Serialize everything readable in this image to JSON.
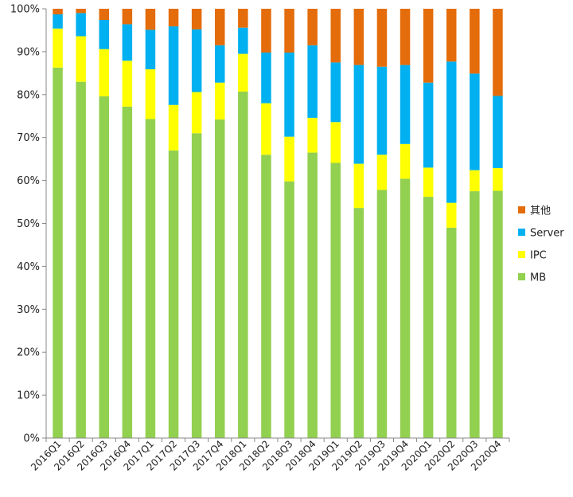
{
  "chart_data": {
    "type": "bar",
    "stacked": true,
    "percent_stacked": true,
    "categories": [
      "2016Q1",
      "2016Q2",
      "2016Q3",
      "2016Q4",
      "2017Q1",
      "2017Q2",
      "2017Q3",
      "2017Q4",
      "2018Q1",
      "2018Q2",
      "2018Q3",
      "2018Q4",
      "2019Q1",
      "2019Q2",
      "2019Q3",
      "2019Q4",
      "2020Q1",
      "2020Q2",
      "2020Q3",
      "2020Q4"
    ],
    "series": [
      {
        "name": "MB",
        "color": "#92D050",
        "values": [
          86.3,
          83.0,
          79.6,
          77.2,
          74.3,
          67.0,
          71.0,
          74.2,
          80.7,
          66.0,
          59.8,
          66.5,
          64.1,
          53.6,
          57.8,
          60.4,
          56.2,
          49.0,
          57.5,
          57.6
        ]
      },
      {
        "name": "IPC",
        "color": "#FFFF00",
        "values": [
          9.1,
          10.6,
          11.0,
          10.7,
          11.6,
          10.6,
          9.6,
          8.6,
          8.8,
          12.0,
          10.4,
          8.1,
          9.5,
          10.3,
          8.2,
          8.1,
          6.8,
          5.8,
          4.9,
          5.3
        ]
      },
      {
        "name": "Server",
        "color": "#00B0F0",
        "values": [
          3.3,
          5.4,
          6.8,
          8.5,
          9.2,
          18.3,
          14.6,
          8.7,
          6.1,
          11.8,
          19.6,
          16.9,
          13.9,
          23.0,
          20.5,
          18.4,
          19.8,
          32.9,
          22.5,
          16.8
        ]
      },
      {
        "name": "其他",
        "color": "#E46C0A",
        "values": [
          1.3,
          1.0,
          2.6,
          3.6,
          4.9,
          4.1,
          4.8,
          8.5,
          4.4,
          10.2,
          10.2,
          8.5,
          12.5,
          13.1,
          13.5,
          13.1,
          17.2,
          12.3,
          15.1,
          20.3
        ]
      }
    ],
    "yticks": [
      "0%",
      "10%",
      "20%",
      "30%",
      "40%",
      "50%",
      "60%",
      "70%",
      "80%",
      "90%",
      "100%"
    ],
    "ylim": [
      0,
      100
    ],
    "title": "",
    "xlabel": "",
    "ylabel": "",
    "grid": false,
    "legend": {
      "position": "right",
      "order": [
        "其他",
        "Server",
        "IPC",
        "MB"
      ]
    }
  }
}
